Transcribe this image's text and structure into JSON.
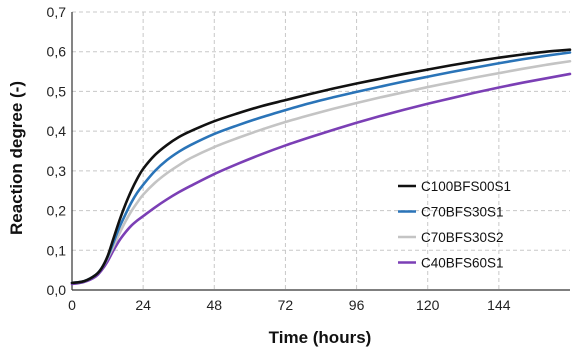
{
  "chart_data": {
    "type": "line",
    "xlabel": "Time (hours)",
    "ylabel": "Reaction degree (-)",
    "xlim": [
      0,
      168
    ],
    "ylim": [
      0,
      0.7
    ],
    "x_ticks": [
      0,
      24,
      48,
      72,
      96,
      120,
      144
    ],
    "x_tick_labels": [
      "0",
      "24",
      "48",
      "72",
      "96",
      "120",
      "144"
    ],
    "y_ticks": [
      0,
      0.1,
      0.2,
      0.3,
      0.4,
      0.5,
      0.6,
      0.7
    ],
    "y_tick_labels": [
      "0,0",
      "0,1",
      "0,2",
      "0,3",
      "0,4",
      "0,5",
      "0,6",
      "0,7"
    ],
    "grid": "dashed",
    "legend_position": "bottom-right",
    "x": [
      0,
      4,
      8,
      10,
      12,
      14,
      16,
      18,
      20,
      22,
      24,
      28,
      32,
      36,
      40,
      48,
      56,
      64,
      72,
      80,
      88,
      96,
      104,
      112,
      120,
      128,
      136,
      144,
      152,
      160,
      168
    ],
    "series": [
      {
        "name": "C100BFS00S1",
        "color": "#111111",
        "values": [
          0.018,
          0.022,
          0.038,
          0.055,
          0.085,
          0.13,
          0.175,
          0.215,
          0.25,
          0.28,
          0.305,
          0.34,
          0.365,
          0.385,
          0.4,
          0.425,
          0.445,
          0.463,
          0.478,
          0.493,
          0.507,
          0.52,
          0.532,
          0.544,
          0.555,
          0.566,
          0.576,
          0.585,
          0.593,
          0.6,
          0.605
        ]
      },
      {
        "name": "C70BFS30S1",
        "color": "#2a74b8",
        "values": [
          0.018,
          0.022,
          0.038,
          0.055,
          0.083,
          0.12,
          0.158,
          0.19,
          0.22,
          0.245,
          0.265,
          0.3,
          0.327,
          0.348,
          0.365,
          0.393,
          0.415,
          0.435,
          0.453,
          0.47,
          0.485,
          0.499,
          0.512,
          0.525,
          0.537,
          0.549,
          0.56,
          0.571,
          0.581,
          0.59,
          0.598
        ]
      },
      {
        "name": "C70BFS30S2",
        "color": "#c4c4c4",
        "values": [
          0.018,
          0.022,
          0.038,
          0.055,
          0.08,
          0.11,
          0.142,
          0.172,
          0.198,
          0.22,
          0.24,
          0.27,
          0.294,
          0.314,
          0.332,
          0.36,
          0.383,
          0.404,
          0.423,
          0.44,
          0.456,
          0.471,
          0.485,
          0.498,
          0.511,
          0.523,
          0.535,
          0.546,
          0.557,
          0.567,
          0.576
        ]
      },
      {
        "name": "C40BFS60S1",
        "color": "#7b3fb5",
        "values": [
          0.015,
          0.02,
          0.034,
          0.05,
          0.072,
          0.1,
          0.125,
          0.145,
          0.162,
          0.175,
          0.186,
          0.208,
          0.228,
          0.246,
          0.262,
          0.292,
          0.318,
          0.342,
          0.364,
          0.384,
          0.403,
          0.421,
          0.438,
          0.454,
          0.469,
          0.483,
          0.497,
          0.51,
          0.522,
          0.533,
          0.544
        ]
      }
    ]
  }
}
